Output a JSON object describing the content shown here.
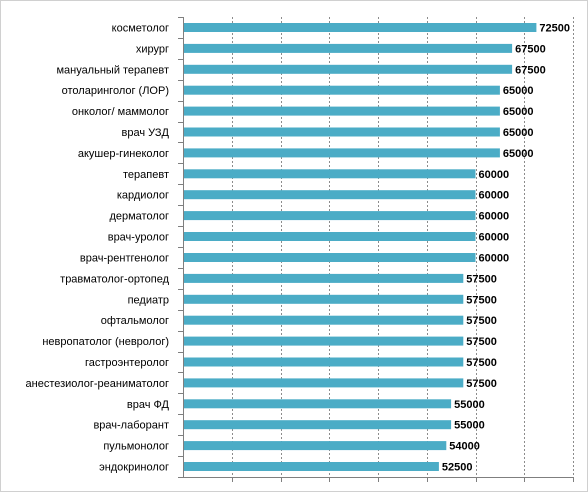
{
  "chart_data": {
    "type": "bar",
    "orientation": "horizontal",
    "categories": [
      "косметолог",
      "хирург",
      "мануальный терапевт",
      "отоларинголог (ЛОР)",
      "онколог/ маммолог",
      "врач УЗД",
      "акушер-гинеколог",
      "терапевт",
      "кардиолог",
      "дерматолог",
      "врач-уролог",
      "врач-рентгенолог",
      "травматолог-ортопед",
      "педиатр",
      "офтальмолог",
      "невропатолог (невролог)",
      "гастроэнтеролог",
      "анестезиолог-реаниматолог",
      "врач ФД",
      "врач-лаборант",
      "пульмонолог",
      "эндокринолог"
    ],
    "values": [
      72500,
      67500,
      67500,
      65000,
      65000,
      65000,
      65000,
      60000,
      60000,
      60000,
      60000,
      60000,
      57500,
      57500,
      57500,
      57500,
      57500,
      57500,
      55000,
      55000,
      54000,
      52500
    ],
    "data_labels": [
      "72500",
      "67500",
      "67500",
      "65000",
      "65000",
      "65000",
      "65000",
      "60000",
      "60000",
      "60000",
      "60000",
      "60000",
      "57500",
      "57500",
      "57500",
      "57500",
      "57500",
      "57500",
      "55000",
      "55000",
      "54000",
      "52500"
    ],
    "xlim": [
      0,
      80000
    ],
    "x_tick_step": 10000,
    "grid": "vertical dashed",
    "legend": "none",
    "colors": {
      "bar": "#4BACC6",
      "grid": "#8c8c8c",
      "axis": "#7f7f7f"
    }
  }
}
